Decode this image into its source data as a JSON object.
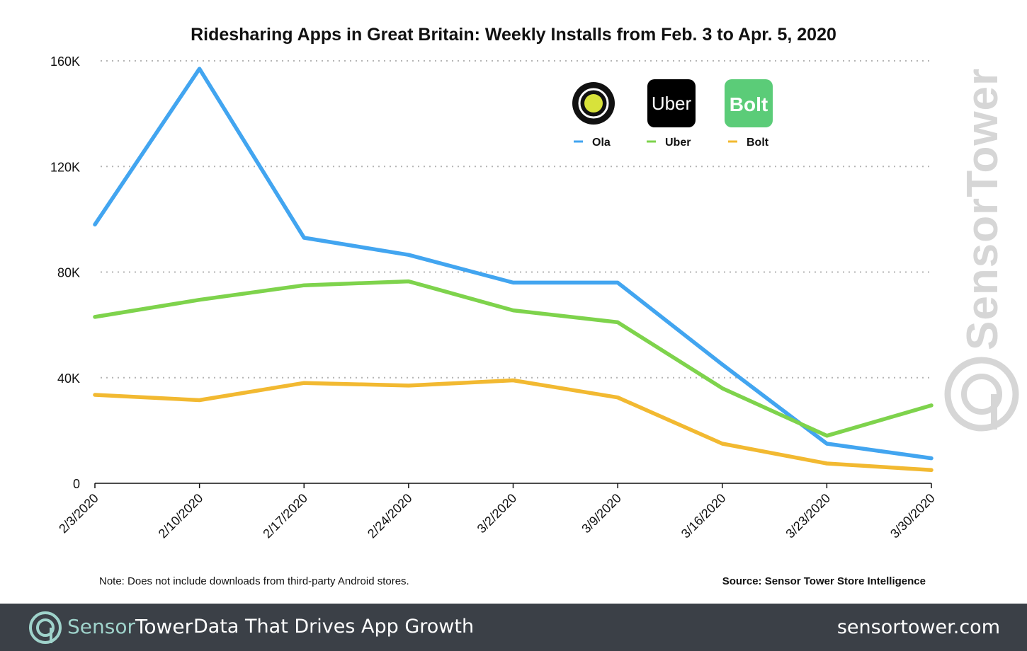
{
  "chart_data": {
    "type": "line",
    "title": "Ridesharing Apps in Great Britain: Weekly Installs from Feb. 3 to Apr. 5, 2020",
    "categories": [
      "2/3/2020",
      "2/10/2020",
      "2/17/2020",
      "2/24/2020",
      "3/2/2020",
      "3/9/2020",
      "3/16/2020",
      "3/23/2020",
      "3/30/2020"
    ],
    "series": [
      {
        "name": "Ola",
        "color": "#42a5f0",
        "values": [
          98000,
          157000,
          93000,
          86500,
          76000,
          76000,
          45000,
          15000,
          9500
        ]
      },
      {
        "name": "Uber",
        "color": "#7ed34c",
        "values": [
          63000,
          69500,
          75000,
          76500,
          65500,
          61000,
          36000,
          18000,
          29500
        ]
      },
      {
        "name": "Bolt",
        "color": "#f2b931",
        "values": [
          33500,
          31500,
          38000,
          37000,
          39000,
          32500,
          15000,
          7500,
          5000
        ]
      }
    ],
    "ylim": [
      0,
      160000
    ],
    "yticks": [
      0,
      40000,
      80000,
      120000,
      160000
    ],
    "ytick_labels": [
      "0",
      "40K",
      "80K",
      "120K",
      "160K"
    ],
    "xlabel": "",
    "ylabel": "",
    "grid": "horizontal dotted",
    "legend": "top-right",
    "legend_icons": [
      {
        "app": "Ola",
        "icon": "ola-app-icon",
        "bg": "#111111"
      },
      {
        "app": "Uber",
        "icon": "uber-app-icon",
        "bg": "#000000",
        "text": "Uber"
      },
      {
        "app": "Bolt",
        "icon": "bolt-app-icon",
        "bg": "#5bcc78",
        "text": "Bolt"
      }
    ]
  },
  "note": "Note: Does not include downloads from third-party Android stores.",
  "source": "Source: Sensor Tower Store Intelligence",
  "watermark": "SensorTower",
  "footer": {
    "brand_part1": "Sensor",
    "brand_part2": "Tower",
    "tagline": "Data That Drives App Growth",
    "url": "sensortower.com"
  }
}
